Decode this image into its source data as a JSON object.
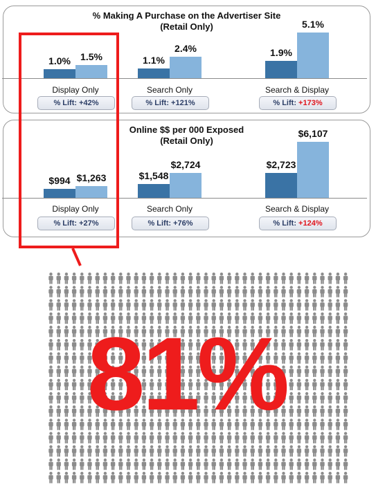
{
  "chart_data": [
    {
      "type": "bar",
      "title": "% Making A Purchase on the Advertiser Site",
      "subtitle": "(Retail Only)",
      "categories": [
        "Display Only",
        "Search Only",
        "Search & Display"
      ],
      "series": [
        {
          "values": [
            1.0,
            1.1,
            1.9
          ],
          "labels": [
            "1.0%",
            "1.1%",
            "1.9%"
          ],
          "color": "#3a73a5"
        },
        {
          "values": [
            1.5,
            2.4,
            5.1
          ],
          "labels": [
            "1.5%",
            "2.4%",
            "5.1%"
          ],
          "color": "#86b4dc"
        }
      ],
      "ylim": [
        0,
        5.4
      ],
      "lift_prefix": "% Lift: ",
      "lifts": [
        "+42%",
        "+121%",
        "+173%"
      ],
      "lift_colors": [
        "#2c3e66",
        "#2c3e66",
        "#e0141c"
      ],
      "grid": false
    },
    {
      "type": "bar",
      "title": "Online $$ per 000 Exposed",
      "subtitle": "(Retail Only)",
      "categories": [
        "Display Only",
        "Search Only",
        "Search & Display"
      ],
      "series": [
        {
          "values": [
            994,
            1548,
            2723
          ],
          "labels": [
            "$994",
            "$1,548",
            "$2,723"
          ],
          "color": "#3a73a5"
        },
        {
          "values": [
            1263,
            2724,
            6107
          ],
          "labels": [
            "$1,263",
            "$2,724",
            "$6,107"
          ],
          "color": "#86b4dc"
        }
      ],
      "ylim": [
        0,
        6500
      ],
      "lift_prefix": "% Lift: ",
      "lifts": [
        "+27%",
        "+76%",
        "+124%"
      ],
      "lift_colors": [
        "#2c3e66",
        "#2c3e66",
        "#e0141c"
      ],
      "grid": false
    }
  ],
  "highlight": {
    "color": "#ee1c1c"
  },
  "infographic": {
    "big_number": "81%",
    "big_number_color": "#ee1c1c",
    "icon": "person-icon",
    "icon_color": "#8c8c8c"
  }
}
